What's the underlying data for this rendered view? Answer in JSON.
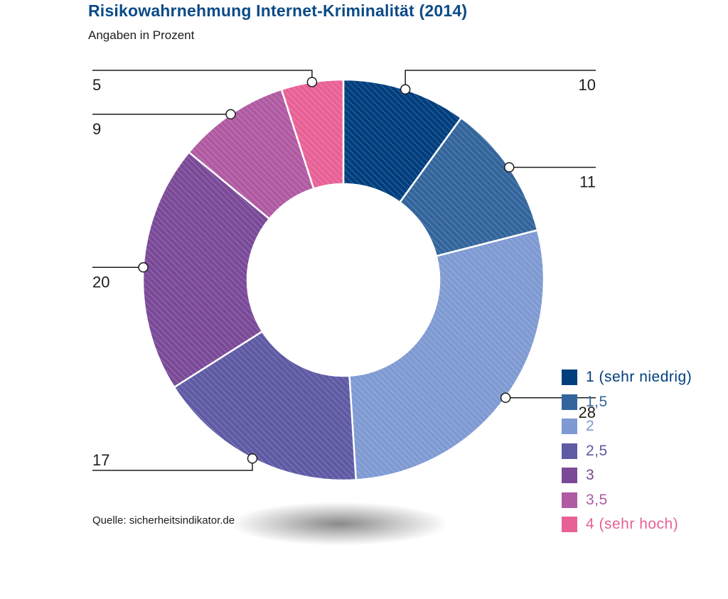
{
  "title": "Risikowahrnehmung Internet-Kriminalität (2014)",
  "subtitle": "Angaben in Prozent",
  "source": "Quelle: sicherheitsindikator.de",
  "chart_data": {
    "type": "pie",
    "variant": "donut",
    "title": "Risikowahrnehmung Internet-Kriminalität (2014)",
    "subtitle": "Angaben in Prozent",
    "categories": [
      "1 (sehr niedrig)",
      "1,5",
      "2",
      "2,5",
      "3",
      "3,5",
      "4 (sehr hoch)"
    ],
    "values": [
      10,
      11,
      28,
      17,
      20,
      9,
      5
    ],
    "value_labels": [
      "10",
      "11",
      "28",
      "17",
      "20",
      "9",
      "5"
    ],
    "colors": [
      "#003e7e",
      "#33659c",
      "#7f9ad2",
      "#5f5aa4",
      "#7a4a98",
      "#b05aa2",
      "#e86196"
    ],
    "legend_text_colors": [
      "#003e7e",
      "#33659c",
      "#7f9ad2",
      "#5f5aa4",
      "#7a4a98",
      "#b05aa2",
      "#e86196"
    ],
    "legend_position": "right",
    "source": "Quelle: sicherheitsindikator.de"
  }
}
